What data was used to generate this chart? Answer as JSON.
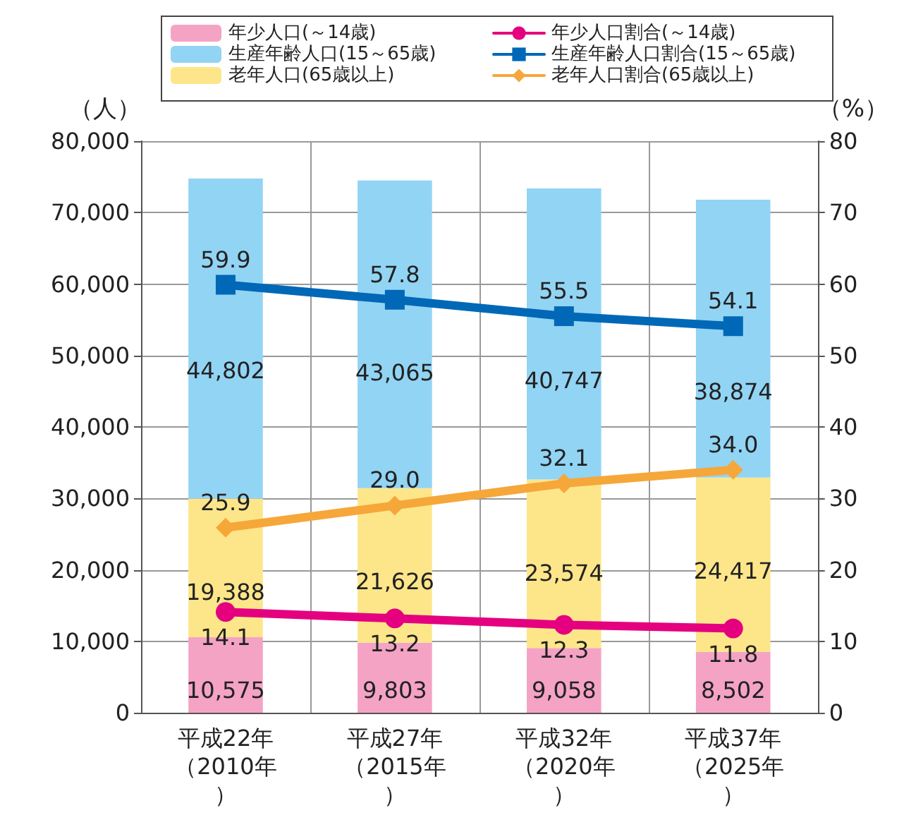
{
  "chart_data": {
    "type": "bar",
    "stacked": true,
    "categories": [
      "平成22年（2010年）",
      "平成27年（2015年）",
      "平成32年（2020年）",
      "平成37年（2025年）"
    ],
    "ylabel": "（人）",
    "y2label": "（%）",
    "ylim": [
      0,
      80000
    ],
    "yticks": [
      0,
      {
        "value": 10000,
        "label": "10,000"
      },
      {
        "value": 20000,
        "label": "20,000"
      },
      {
        "value": 30000,
        "label": "30,000"
      },
      {
        "value": 40000,
        "label": "40,000"
      },
      {
        "value": 50000,
        "label": "50,000"
      },
      {
        "value": 60000,
        "label": "60,000"
      },
      {
        "value": 70000,
        "label": "70,000"
      },
      {
        "value": 80000,
        "label": "80,000"
      }
    ],
    "y2lim": [
      0,
      80
    ],
    "y2ticks": [
      0,
      10,
      20,
      30,
      40,
      50,
      60,
      70,
      80
    ],
    "grid": true,
    "legend": "top",
    "series": [
      {
        "name": "年少人口(～14歳)",
        "color": "#f4a3c4",
        "values": [
          10575,
          9803,
          9058,
          8502
        ],
        "value_labels": [
          "10,575",
          "9,803",
          "9,058",
          "8,502"
        ]
      },
      {
        "name": "老年人口(65歳以上)",
        "color": "#fde68a",
        "values": [
          19388,
          21626,
          23574,
          24417
        ],
        "value_labels": [
          "19,388",
          "21,626",
          "23,574",
          "24,417"
        ]
      },
      {
        "name": "生産年齢人口(15～65歳)",
        "color": "#92d4f4",
        "values": [
          44802,
          43065,
          40747,
          38874
        ],
        "value_labels": [
          "44,802",
          "43,065",
          "40,747",
          "38,874"
        ]
      },
      {
        "name": "年少人口割合(～14歳)",
        "type": "line",
        "axis": "y2",
        "marker": "circle",
        "color": "#e4007f",
        "values": [
          14.1,
          13.2,
          12.3,
          11.8
        ],
        "value_labels": [
          "14.1",
          "13.2",
          "12.3",
          "11.8"
        ]
      },
      {
        "name": "生産年齢人口割合(15～65歳)",
        "type": "line",
        "axis": "y2",
        "marker": "square",
        "color": "#0068b7",
        "values": [
          59.9,
          57.8,
          55.5,
          54.1
        ],
        "value_labels": [
          "59.9",
          "57.8",
          "55.5",
          "54.1"
        ]
      },
      {
        "name": "老年人口割合(65歳以上)",
        "type": "line",
        "axis": "y2",
        "marker": "diamond",
        "color": "#f6a73a",
        "values": [
          25.9,
          29.0,
          32.1,
          34.0
        ],
        "value_labels": [
          "25.9",
          "29.0",
          "32.1",
          "34.0"
        ]
      }
    ]
  }
}
